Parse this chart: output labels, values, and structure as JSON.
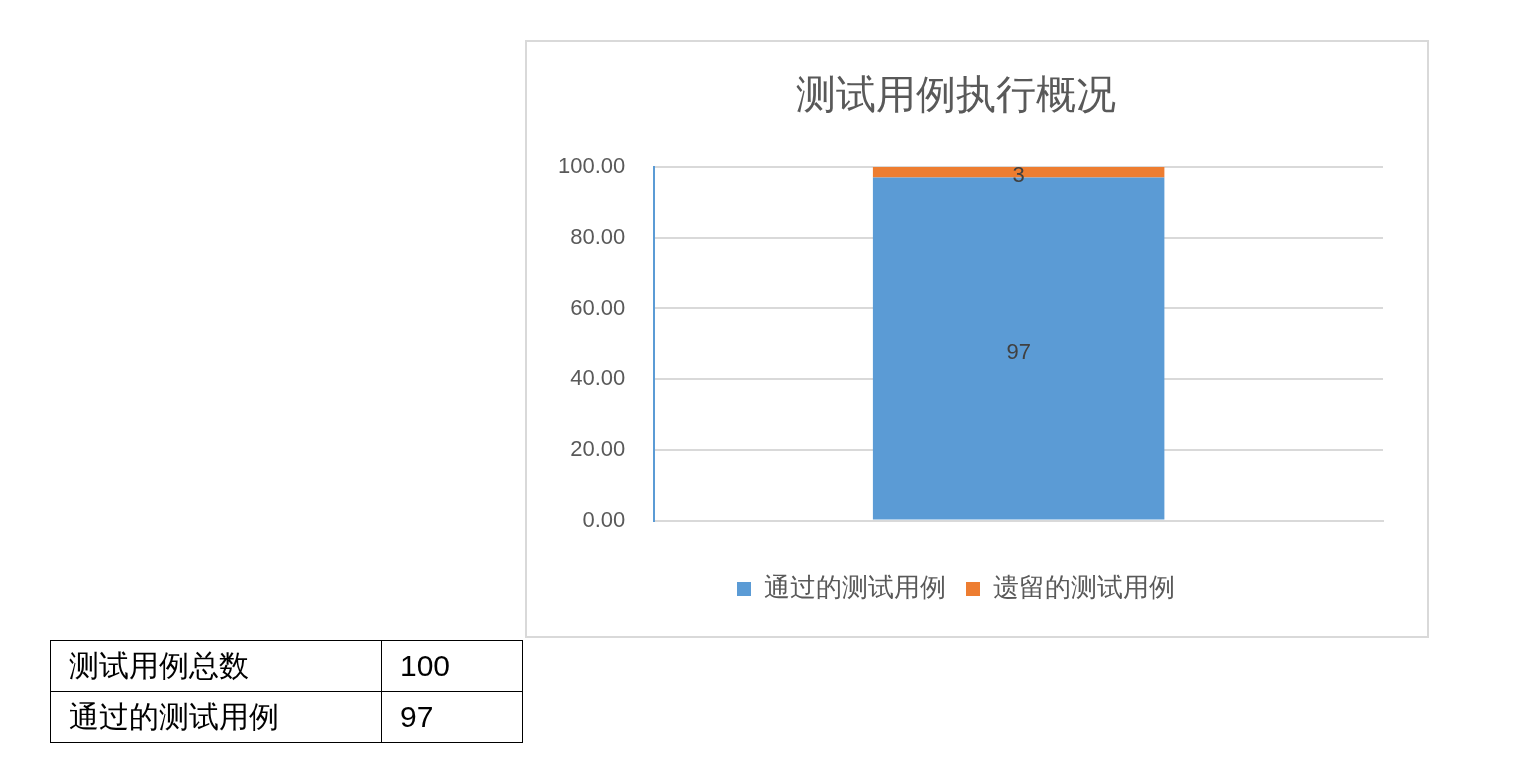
{
  "chart_data": {
    "type": "bar",
    "title": "测试用例执行概况",
    "categories": [
      null
    ],
    "stacked": true,
    "series": [
      {
        "name": "通过的测试用例",
        "color": "#5b9bd5",
        "values": [
          97
        ]
      },
      {
        "name": "遗留的测试用例",
        "color": "#ed7d31",
        "values": [
          3
        ]
      }
    ],
    "ylim": [
      0,
      100
    ],
    "yticks": [
      {
        "value": 0,
        "label": "0.00"
      },
      {
        "value": 20,
        "label": "20.00"
      },
      {
        "value": 40,
        "label": "40.00"
      },
      {
        "value": 60,
        "label": "60.00"
      },
      {
        "value": 80,
        "label": "80.00"
      },
      {
        "value": 100,
        "label": "100.00"
      }
    ],
    "grid": "y",
    "legend": "bottom",
    "data_labels": true,
    "annotations": [
      "测试用例总数",
      "100",
      "通过的测试用例",
      "97"
    ]
  }
}
